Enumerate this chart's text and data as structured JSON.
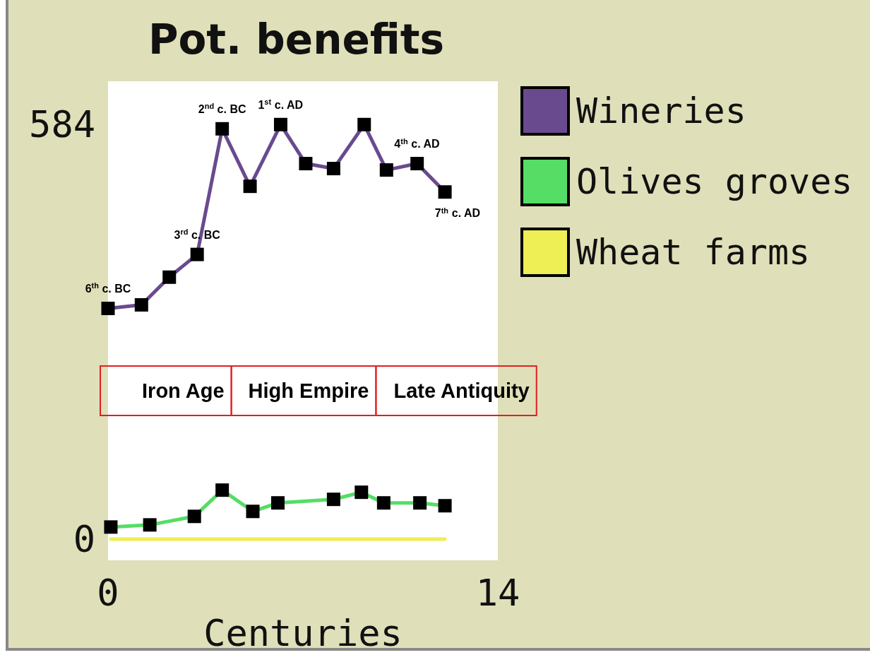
{
  "chart_data": {
    "type": "line",
    "title": "Pot. benefits",
    "xlabel": "Centuries",
    "xlim": [
      0,
      14
    ],
    "xticks": [
      0,
      14
    ],
    "ylim": [
      -30,
      645
    ],
    "yticks": [
      0,
      584
    ],
    "grid": false,
    "legend": "top right",
    "marker": "square",
    "line_style": "solid",
    "series": [
      {
        "name": "Wineries",
        "color": "#6a4a8e",
        "x": [
          0,
          1.2,
          2.2,
          3.2,
          4.1,
          5.1,
          6.2,
          7.1,
          8.1,
          9.2,
          10,
          11.1,
          12.1
        ],
        "values": [
          325,
          330,
          369,
          401,
          578,
          497,
          584,
          529,
          522,
          584,
          520,
          529,
          489
        ]
      },
      {
        "name": "Olives groves",
        "color": "#55dd66",
        "x": [
          0.1,
          1.5,
          3.1,
          4.1,
          5.2,
          6.1,
          8.1,
          9.1,
          9.9,
          11.2,
          12.1
        ],
        "values": [
          17,
          20,
          32,
          69,
          39,
          51,
          56,
          66,
          51,
          51,
          47
        ]
      },
      {
        "name": "Wheat farms",
        "color": "#eeee55",
        "marker": "none",
        "x": [
          0.1,
          12.1
        ],
        "values": [
          0,
          0
        ]
      }
    ],
    "annotations": [
      {
        "text": "6$^{th}$ c. BC",
        "x": 0,
        "y": 325
      },
      {
        "text": "3$^{rd}$ c. BC",
        "x": 3.2,
        "y": 401
      },
      {
        "text": "2$^{nd}$ c. BC",
        "x": 4.1,
        "y": 578
      },
      {
        "text": "1$^{st}$ c. AD",
        "x": 6.2,
        "y": 584
      },
      {
        "text": "4$^{th}$ c. AD",
        "x": 11.1,
        "y": 529
      },
      {
        "text": "7$^{th}$ c. AD",
        "x": 12.1,
        "y": 489
      },
      "Iron Age",
      "High Empire",
      "Late Antiquity"
    ]
  }
}
